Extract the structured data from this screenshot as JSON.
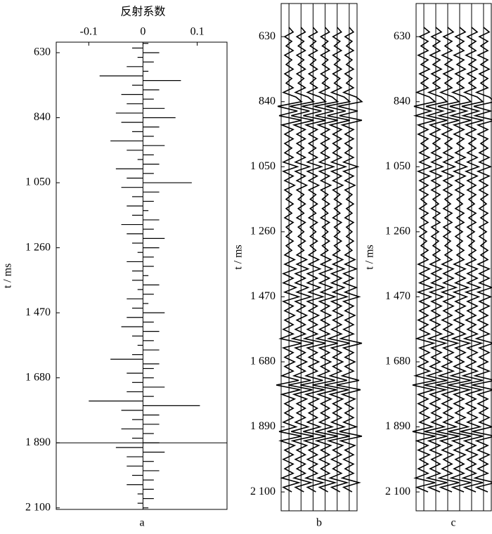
{
  "chart_data": [
    {
      "type": "spike",
      "title": "反射系数",
      "ylabel": "t / ms",
      "caption": "a",
      "time": [
        600,
        615,
        630,
        645,
        660,
        675,
        690,
        705,
        720,
        735,
        750,
        765,
        780,
        795,
        810,
        825,
        840,
        855,
        870,
        885,
        900,
        915,
        930,
        945,
        960,
        975,
        990,
        1005,
        1020,
        1035,
        1050,
        1065,
        1080,
        1095,
        1110,
        1125,
        1140,
        1155,
        1170,
        1185,
        1200,
        1215,
        1230,
        1245,
        1260,
        1275,
        1290,
        1305,
        1320,
        1335,
        1350,
        1365,
        1380,
        1395,
        1410,
        1425,
        1440,
        1455,
        1470,
        1485,
        1500,
        1515,
        1530,
        1545,
        1560,
        1575,
        1590,
        1605,
        1620,
        1635,
        1650,
        1665,
        1680,
        1695,
        1710,
        1725,
        1740,
        1755,
        1770,
        1785,
        1800,
        1815,
        1830,
        1845,
        1860,
        1875,
        1890,
        1905,
        1920,
        1935,
        1950,
        1965,
        1980,
        1995,
        2010,
        2025,
        2040,
        2055,
        2070,
        2085,
        2100
      ],
      "values": [
        0.01,
        -0.02,
        0.03,
        -0.01,
        0.02,
        -0.03,
        0.01,
        -0.08,
        0.07,
        -0.02,
        0.03,
        -0.04,
        0.02,
        -0.03,
        0.04,
        -0.05,
        0.06,
        -0.04,
        0.03,
        -0.02,
        0.02,
        -0.06,
        0.04,
        -0.03,
        0.02,
        -0.01,
        0.03,
        -0.05,
        0.02,
        -0.03,
        0.09,
        -0.04,
        0.03,
        -0.02,
        0.02,
        -0.03,
        0.01,
        -0.02,
        0.03,
        -0.04,
        0.02,
        -0.03,
        0.04,
        -0.02,
        0.03,
        -0.01,
        0.02,
        -0.03,
        0.02,
        -0.02,
        0.01,
        -0.02,
        0.03,
        -0.01,
        0.02,
        -0.03,
        0.01,
        -0.02,
        0.04,
        -0.03,
        0.02,
        -0.04,
        0.03,
        -0.02,
        0.02,
        -0.01,
        0.03,
        -0.02,
        -0.06,
        0.03,
        0.02,
        -0.03,
        0.02,
        -0.02,
        0.04,
        -0.03,
        0.02,
        -0.1,
        0.105,
        -0.04,
        0.03,
        -0.02,
        0.03,
        -0.04,
        0.02,
        -0.02,
        0.03,
        -0.05,
        0.04,
        -0.03,
        0.02,
        -0.03,
        0.03,
        -0.02,
        0.02,
        -0.03,
        0.02,
        -0.01,
        0.02,
        -0.01,
        0.01
      ],
      "marker_line": 1890,
      "color": "#000000",
      "xlim": [
        -0.16,
        0.155
      ],
      "xticks": [
        -0.1,
        0,
        0.1
      ],
      "ylim": [
        596,
        2105
      ],
      "yticks": [
        630,
        840,
        {
          "value": 1050,
          "label": "1 050"
        },
        {
          "value": 1260,
          "label": "1 260"
        },
        {
          "value": 1470,
          "label": "1 470"
        },
        {
          "value": 1680,
          "label": "1 680"
        },
        {
          "value": 1890,
          "label": "1 890"
        },
        {
          "value": 2100,
          "label": "2 100"
        }
      ]
    },
    {
      "type": "wiggle",
      "ylabel": "t / ms",
      "caption": "b",
      "trace_count": 6,
      "color": "#000000",
      "time": [
        600,
        615,
        630,
        645,
        660,
        675,
        690,
        705,
        720,
        735,
        750,
        765,
        780,
        795,
        810,
        825,
        840,
        855,
        870,
        885,
        900,
        915,
        930,
        945,
        960,
        975,
        990,
        1005,
        1020,
        1035,
        1050,
        1065,
        1080,
        1095,
        1110,
        1125,
        1140,
        1155,
        1170,
        1185,
        1200,
        1215,
        1230,
        1245,
        1260,
        1275,
        1290,
        1305,
        1320,
        1335,
        1350,
        1365,
        1380,
        1395,
        1410,
        1425,
        1440,
        1455,
        1470,
        1485,
        1500,
        1515,
        1530,
        1545,
        1560,
        1575,
        1590,
        1605,
        1620,
        1635,
        1650,
        1665,
        1680,
        1695,
        1710,
        1725,
        1740,
        1755,
        1770,
        1785,
        1800,
        1815,
        1830,
        1845,
        1860,
        1875,
        1890,
        1905,
        1920,
        1935,
        1950,
        1965,
        1980,
        1995,
        2010,
        2025,
        2040,
        2055,
        2070,
        2085,
        2100
      ],
      "values": [
        0,
        0.3,
        -0.3,
        0.2,
        -0.2,
        0.3,
        -0.3,
        0.2,
        -0.2,
        0.3,
        -0.3,
        0.2,
        -0.2,
        0.3,
        -0.4,
        0.5,
        0.9,
        -0.8,
        0.6,
        -0.7,
        0.9,
        -0.5,
        0.3,
        -0.3,
        0.3,
        -0.3,
        0.2,
        -0.3,
        0.3,
        -0.4,
        0.6,
        -0.4,
        0.3,
        -0.3,
        0.4,
        -0.3,
        0.2,
        -0.2,
        0.3,
        -0.2,
        0.2,
        -0.3,
        0.3,
        -0.2,
        0.2,
        -0.2,
        0.3,
        -0.2,
        0.2,
        -0.3,
        0.4,
        -0.3,
        0.5,
        -0.4,
        0.3,
        -0.4,
        0.5,
        -0.3,
        0.7,
        -0.4,
        0.3,
        -0.3,
        0.4,
        -0.3,
        0.3,
        -0.4,
        0.3,
        -0.6,
        0.9,
        -0.4,
        0.3,
        -0.3,
        0.4,
        -0.3,
        0.3,
        -0.5,
        0.7,
        -0.9,
        0.8,
        -0.5,
        0.4,
        -0.3,
        0.3,
        -0.3,
        0.3,
        -0.4,
        0.5,
        -0.7,
        0.9,
        -0.6,
        0.4,
        -0.3,
        0.3,
        -0.4,
        0.3,
        -0.3,
        0.3,
        -0.5,
        0.7,
        -0.4,
        0.2
      ],
      "ylim": [
        523,
        2161
      ],
      "yticks": [
        630,
        840,
        {
          "value": 1050,
          "label": "1 050"
        },
        {
          "value": 1260,
          "label": "1 260"
        },
        {
          "value": 1470,
          "label": "1 470"
        },
        {
          "value": 1680,
          "label": "1 680"
        },
        {
          "value": 1890,
          "label": "1 890"
        },
        {
          "value": 2100,
          "label": "2 100"
        }
      ]
    },
    {
      "type": "wiggle",
      "ylabel": "t / ms",
      "caption": "c",
      "trace_count": 6,
      "color": "#000000",
      "time": [
        600,
        615,
        630,
        645,
        660,
        675,
        690,
        705,
        720,
        735,
        750,
        765,
        780,
        795,
        810,
        825,
        840,
        855,
        870,
        885,
        900,
        915,
        930,
        945,
        960,
        975,
        990,
        1005,
        1020,
        1035,
        1050,
        1065,
        1080,
        1095,
        1110,
        1125,
        1140,
        1155,
        1170,
        1185,
        1200,
        1215,
        1230,
        1245,
        1260,
        1275,
        1290,
        1305,
        1320,
        1335,
        1350,
        1365,
        1380,
        1395,
        1410,
        1425,
        1440,
        1455,
        1470,
        1485,
        1500,
        1515,
        1530,
        1545,
        1560,
        1575,
        1590,
        1605,
        1620,
        1635,
        1650,
        1665,
        1680,
        1695,
        1710,
        1725,
        1740,
        1755,
        1770,
        1785,
        1800,
        1815,
        1830,
        1845,
        1860,
        1875,
        1890,
        1905,
        1920,
        1935,
        1950,
        1965,
        1980,
        1995,
        2010,
        2025,
        2040,
        2055,
        2070,
        2085,
        2100
      ],
      "values": [
        0,
        0.4,
        -0.3,
        0.3,
        -0.2,
        0.3,
        -0.4,
        0.3,
        -0.2,
        0.4,
        -0.3,
        0.3,
        -0.2,
        0.3,
        -0.5,
        0.4,
        0.8,
        -0.7,
        0.5,
        -0.6,
        0.8,
        -0.4,
        0.3,
        -0.4,
        0.3,
        -0.2,
        0.3,
        -0.3,
        0.4,
        -0.3,
        0.5,
        -0.4,
        0.4,
        -0.3,
        0.3,
        -0.3,
        0.3,
        -0.2,
        0.2,
        -0.3,
        0.3,
        -0.2,
        0.3,
        -0.3,
        0.2,
        -0.3,
        0.2,
        -0.2,
        0.3,
        -0.2,
        0.3,
        -0.4,
        0.4,
        -0.3,
        0.4,
        -0.3,
        0.6,
        -0.4,
        0.5,
        -0.3,
        0.4,
        -0.3,
        0.3,
        -0.4,
        0.3,
        -0.3,
        0.4,
        -0.5,
        0.7,
        -0.3,
        0.4,
        -0.3,
        0.3,
        -0.4,
        0.4,
        -0.6,
        0.8,
        -0.8,
        0.7,
        -0.4,
        0.3,
        -0.4,
        0.3,
        -0.3,
        0.4,
        -0.3,
        0.6,
        -0.8,
        0.8,
        -0.5,
        0.3,
        -0.4,
        0.4,
        -0.3,
        0.3,
        -0.4,
        0.3,
        -0.6,
        0.8,
        -0.5,
        0.3
      ],
      "ylim": [
        523,
        2161
      ],
      "yticks": [
        630,
        840,
        {
          "value": 1050,
          "label": "1 050"
        },
        {
          "value": 1260,
          "label": "1 260"
        },
        {
          "value": 1470,
          "label": "1 470"
        },
        {
          "value": 1680,
          "label": "1 680"
        },
        {
          "value": 1890,
          "label": "1 890"
        },
        {
          "value": 2100,
          "label": "2 100"
        }
      ]
    }
  ]
}
